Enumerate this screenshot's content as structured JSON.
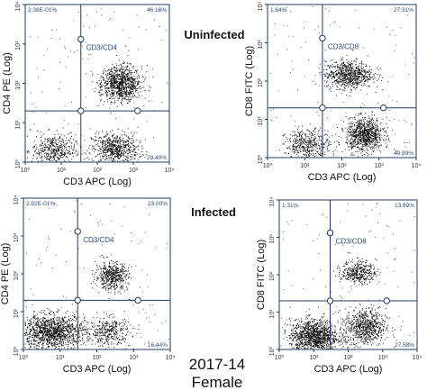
{
  "figure": {
    "label_uninfected": "Uninfected",
    "label_infected": "Infected",
    "caption_line1": "2017-14",
    "caption_line2": "Female"
  },
  "colors": {
    "axes": "#1f3b63",
    "gate": "#1f3b63",
    "quadrant_text": "#2a4a7a",
    "dots": "#111111"
  },
  "chart_data": [
    {
      "type": "scatter",
      "title": "CD3/CD4",
      "group": "Uninfected",
      "xlabel": "CD3 APC (Log)",
      "ylabel": "CD4 PE (Log)",
      "scale": "log",
      "xlim": [
        1,
        10000
      ],
      "ylim": [
        1,
        10000
      ],
      "x_ticks": [
        "10⁰",
        "10¹",
        "10²",
        "10³",
        "10⁴"
      ],
      "y_ticks": [
        "10⁰",
        "10¹",
        "10²",
        "10³",
        "10⁴"
      ],
      "quadrant_gate": {
        "x": 35,
        "y": 20
      },
      "quadrant_labels": {
        "upper_left": "2.38E-01%",
        "upper_right": "46.16%",
        "lower_right": "29.40%"
      },
      "populations": [
        {
          "name": "",
          "x_center": 450,
          "y_center": 100,
          "x_spread": 0.28,
          "y_spread": 0.22,
          "count": 950
        },
        {
          "name": "",
          "x_center": 300,
          "y_center": 2.2,
          "x_spread": 0.32,
          "y_spread": 0.2,
          "count": 650
        },
        {
          "name": "",
          "x_center": 6,
          "y_center": 2.0,
          "x_spread": 0.3,
          "y_spread": 0.2,
          "count": 450
        }
      ]
    },
    {
      "type": "scatter",
      "title": "CD3/CD8",
      "group": "Uninfected",
      "xlabel": "CD3 APC (Log)",
      "ylabel": "CD8 FITC (Log)",
      "scale": "log",
      "xlim": [
        1,
        10000
      ],
      "ylim": [
        1,
        10000
      ],
      "x_ticks": [
        "10⁰",
        "10¹",
        "10²",
        "10³",
        "10⁴"
      ],
      "y_ticks": [
        "10⁰",
        "10¹",
        "10²",
        "10³",
        "10⁴"
      ],
      "quadrant_gate": {
        "x": 30,
        "y": 20
      },
      "quadrant_labels": {
        "upper_left": "1.64%",
        "upper_right": "27.31%",
        "lower_right": "49.99%"
      },
      "populations": [
        {
          "name": "",
          "x_center": 150,
          "y_center": 150,
          "x_spread": 0.32,
          "y_spread": 0.18,
          "count": 750
        },
        {
          "name": "",
          "x_center": 400,
          "y_center": 4,
          "x_spread": 0.25,
          "y_spread": 0.22,
          "count": 900
        },
        {
          "name": "",
          "x_center": 12,
          "y_center": 2.2,
          "x_spread": 0.3,
          "y_spread": 0.2,
          "count": 450
        }
      ]
    },
    {
      "type": "scatter",
      "title": "CD3/CD4",
      "group": "Infected",
      "xlabel": "CD3 APC (Log)",
      "ylabel": "CD4 PE (Log)",
      "scale": "log",
      "xlim": [
        1,
        10000
      ],
      "ylim": [
        1,
        10000
      ],
      "x_ticks": [
        "10⁰",
        "10¹",
        "10²",
        "10³",
        "10⁴"
      ],
      "y_ticks": [
        "10⁰",
        "10¹",
        "10²",
        "10³",
        "10⁴"
      ],
      "quadrant_gate": {
        "x": 30,
        "y": 20
      },
      "quadrant_labels": {
        "upper_left": "2.92E-01%",
        "upper_right": "23.00%",
        "lower_right": "16.44%"
      },
      "populations": [
        {
          "name": "",
          "x_center": 250,
          "y_center": 90,
          "x_spread": 0.22,
          "y_spread": 0.18,
          "count": 500
        },
        {
          "name": "",
          "x_center": 6,
          "y_center": 3,
          "x_spread": 0.45,
          "y_spread": 0.22,
          "count": 1300
        },
        {
          "name": "",
          "x_center": 200,
          "y_center": 3,
          "x_spread": 0.3,
          "y_spread": 0.2,
          "count": 350
        }
      ]
    },
    {
      "type": "scatter",
      "title": "CD3/CD8",
      "group": "Infected",
      "xlabel": "CD3 APC (Log)",
      "ylabel": "CD8 FITC (Log)",
      "scale": "log",
      "xlim": [
        1,
        10000
      ],
      "ylim": [
        1,
        10000
      ],
      "x_ticks": [
        "10⁰",
        "10¹",
        "10²",
        "10³",
        "10⁴"
      ],
      "y_ticks": [
        "10⁰",
        "10¹",
        "10²",
        "10³",
        "10⁴"
      ],
      "quadrant_gate": {
        "x": 30,
        "y": 20
      },
      "quadrant_labels": {
        "upper_left": "1.31%",
        "upper_right": "13.80%",
        "lower_right": "27.58%"
      },
      "populations": [
        {
          "name": "",
          "x_center": 200,
          "y_center": 120,
          "x_spread": 0.25,
          "y_spread": 0.15,
          "count": 380
        },
        {
          "name": "",
          "x_center": 300,
          "y_center": 4,
          "x_spread": 0.3,
          "y_spread": 0.25,
          "count": 700
        },
        {
          "name": "",
          "x_center": 10,
          "y_center": 2.3,
          "x_spread": 0.35,
          "y_spread": 0.22,
          "count": 1200
        }
      ]
    }
  ]
}
